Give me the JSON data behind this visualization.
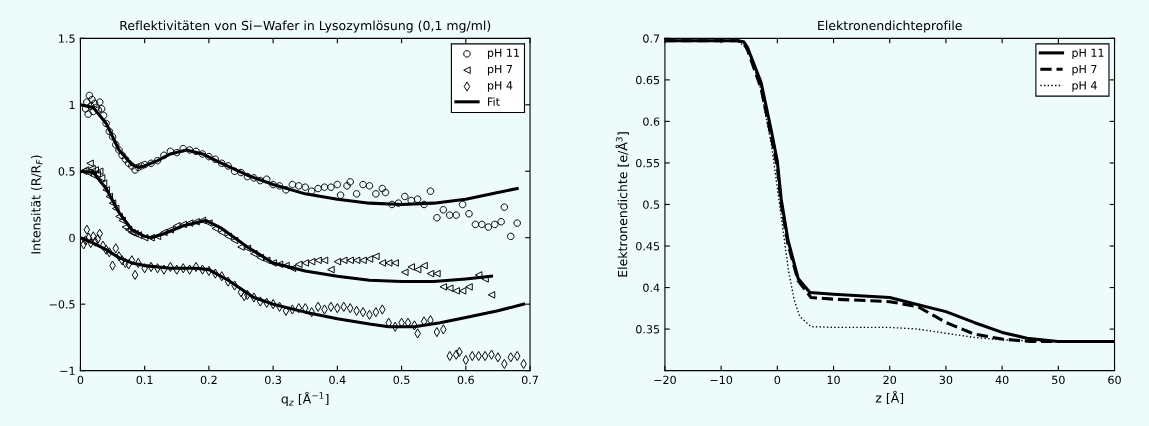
{
  "chart_data": [
    {
      "type": "scatter",
      "title": "Reflektivitäten von Si−Wafer in Lysozymlösung (0,1 mg/ml)",
      "xlabel": "q$_{z}$ [Å$^{−1}$]",
      "ylabel": "Intensität (R/R$_{F}$)",
      "xlim": [
        0,
        0.7
      ],
      "ylim": [
        -1,
        1.5
      ],
      "xticks": [
        0,
        0.1,
        0.2,
        0.3,
        0.4,
        0.5,
        0.6,
        0.7
      ],
      "yticks": [
        {
          "value": -1,
          "label": "−1"
        },
        {
          "value": -0.5,
          "label": "−0.5"
        },
        0,
        0.5,
        1,
        1.5
      ],
      "grid": false,
      "legend": "top right",
      "series": [
        {
          "name": "pH 11",
          "color": "#000000",
          "marker": "circle",
          "x": [
            0.008,
            0.01,
            0.012,
            0.014,
            0.016,
            0.018,
            0.02,
            0.022,
            0.025,
            0.028,
            0.03,
            0.033,
            0.036,
            0.04,
            0.045,
            0.05,
            0.055,
            0.06,
            0.065,
            0.07,
            0.075,
            0.08,
            0.085,
            0.09,
            0.095,
            0.1,
            0.11,
            0.12,
            0.13,
            0.14,
            0.15,
            0.16,
            0.17,
            0.18,
            0.19,
            0.2,
            0.21,
            0.22,
            0.23,
            0.24,
            0.25,
            0.26,
            0.27,
            0.28,
            0.29,
            0.3,
            0.31,
            0.32,
            0.33,
            0.34,
            0.35,
            0.36,
            0.37,
            0.38,
            0.39,
            0.4,
            0.405,
            0.415,
            0.42,
            0.43,
            0.44,
            0.45,
            0.46,
            0.47,
            0.475,
            0.485,
            0.495,
            0.505,
            0.515,
            0.525,
            0.535,
            0.545,
            0.555,
            0.565,
            0.575,
            0.585,
            0.595,
            0.605,
            0.615,
            0.625,
            0.635,
            0.645,
            0.655,
            0.66,
            0.67,
            0.68
          ],
          "values": [
            0.97,
            1.02,
            0.93,
            1.07,
            0.99,
            1.04,
            0.95,
            1.01,
            0.98,
            0.96,
            1.02,
            0.97,
            0.92,
            0.86,
            0.8,
            0.76,
            0.7,
            0.66,
            0.62,
            0.59,
            0.56,
            0.54,
            0.51,
            0.53,
            0.54,
            0.55,
            0.56,
            0.58,
            0.62,
            0.65,
            0.64,
            0.67,
            0.66,
            0.65,
            0.63,
            0.61,
            0.59,
            0.56,
            0.54,
            0.5,
            0.49,
            0.46,
            0.45,
            0.43,
            0.44,
            0.4,
            0.39,
            0.36,
            0.4,
            0.39,
            0.38,
            0.35,
            0.37,
            0.38,
            0.38,
            0.4,
            0.32,
            0.39,
            0.42,
            0.33,
            0.4,
            0.39,
            0.33,
            0.37,
            0.34,
            0.25,
            0.26,
            0.31,
            0.28,
            0.29,
            0.25,
            0.35,
            0.15,
            0.21,
            0.17,
            0.17,
            0.25,
            0.18,
            0.1,
            0.1,
            0.08,
            0.1,
            0.12,
            0.23,
            0.01,
            0.11
          ]
        },
        {
          "name": "pH 7",
          "color": "#000000",
          "marker": "triangle",
          "x": [
            0.005,
            0.008,
            0.012,
            0.015,
            0.018,
            0.02,
            0.023,
            0.026,
            0.03,
            0.033,
            0.036,
            0.04,
            0.045,
            0.05,
            0.055,
            0.06,
            0.065,
            0.07,
            0.075,
            0.08,
            0.085,
            0.09,
            0.1,
            0.11,
            0.12,
            0.13,
            0.14,
            0.15,
            0.16,
            0.17,
            0.18,
            0.19,
            0.2,
            0.21,
            0.22,
            0.23,
            0.24,
            0.25,
            0.26,
            0.27,
            0.28,
            0.29,
            0.3,
            0.31,
            0.32,
            0.33,
            0.34,
            0.35,
            0.36,
            0.37,
            0.38,
            0.39,
            0.4,
            0.41,
            0.42,
            0.43,
            0.44,
            0.45,
            0.46,
            0.47,
            0.48,
            0.49,
            0.505,
            0.515,
            0.525,
            0.535,
            0.545,
            0.555,
            0.565,
            0.575,
            0.585,
            0.595,
            0.605,
            0.62,
            0.63,
            0.64
          ],
          "values": [
            0.5,
            0.51,
            0.49,
            0.56,
            0.52,
            0.47,
            0.51,
            0.48,
            0.5,
            0.45,
            0.41,
            0.36,
            0.31,
            0.26,
            0.22,
            0.16,
            0.13,
            0.08,
            0.06,
            0.04,
            0.03,
            0.02,
            0.0,
            0.0,
            0.01,
            0.04,
            0.06,
            0.09,
            0.1,
            0.11,
            0.12,
            0.13,
            0.11,
            0.07,
            0.04,
            0.01,
            -0.02,
            -0.07,
            -0.08,
            -0.12,
            -0.15,
            -0.17,
            -0.19,
            -0.2,
            -0.21,
            -0.23,
            -0.2,
            -0.19,
            -0.18,
            -0.17,
            -0.17,
            -0.24,
            -0.18,
            -0.17,
            -0.17,
            -0.17,
            -0.17,
            -0.16,
            -0.14,
            -0.19,
            -0.19,
            -0.19,
            -0.26,
            -0.22,
            -0.24,
            -0.21,
            -0.27,
            -0.27,
            -0.37,
            -0.38,
            -0.4,
            -0.4,
            -0.37,
            -0.28,
            -0.31,
            -0.43
          ]
        },
        {
          "name": "pH 4",
          "color": "#000000",
          "marker": "diamond",
          "x": [
            0.005,
            0.008,
            0.01,
            0.013,
            0.016,
            0.02,
            0.023,
            0.027,
            0.03,
            0.035,
            0.04,
            0.045,
            0.05,
            0.055,
            0.06,
            0.065,
            0.07,
            0.075,
            0.08,
            0.085,
            0.09,
            0.1,
            0.11,
            0.12,
            0.13,
            0.14,
            0.15,
            0.16,
            0.17,
            0.18,
            0.19,
            0.2,
            0.21,
            0.22,
            0.23,
            0.24,
            0.25,
            0.255,
            0.26,
            0.27,
            0.28,
            0.29,
            0.3,
            0.31,
            0.32,
            0.33,
            0.34,
            0.35,
            0.36,
            0.37,
            0.38,
            0.39,
            0.4,
            0.41,
            0.42,
            0.43,
            0.44,
            0.45,
            0.46,
            0.47,
            0.48,
            0.49,
            0.5,
            0.51,
            0.52,
            0.525,
            0.535,
            0.545,
            0.555,
            0.565,
            0.575,
            0.585,
            0.59,
            0.6,
            0.61,
            0.62,
            0.63,
            0.64,
            0.65,
            0.66,
            0.67,
            0.68,
            0.69
          ],
          "values": [
            -0.05,
            -0.02,
            0.06,
            0.0,
            -0.04,
            0.01,
            -0.03,
            -0.01,
            0.03,
            -0.06,
            -0.09,
            -0.11,
            -0.21,
            -0.08,
            -0.14,
            -0.17,
            -0.19,
            -0.2,
            -0.17,
            -0.28,
            -0.19,
            -0.23,
            -0.22,
            -0.23,
            -0.24,
            -0.22,
            -0.24,
            -0.23,
            -0.24,
            -0.22,
            -0.24,
            -0.25,
            -0.27,
            -0.29,
            -0.33,
            -0.36,
            -0.41,
            -0.44,
            -0.43,
            -0.45,
            -0.48,
            -0.49,
            -0.5,
            -0.52,
            -0.55,
            -0.54,
            -0.53,
            -0.53,
            -0.56,
            -0.52,
            -0.54,
            -0.52,
            -0.53,
            -0.52,
            -0.53,
            -0.55,
            -0.56,
            -0.58,
            -0.56,
            -0.54,
            -0.64,
            -0.67,
            -0.64,
            -0.64,
            -0.66,
            -0.72,
            -0.63,
            -0.62,
            -0.71,
            -0.69,
            -0.89,
            -0.88,
            -0.86,
            -0.92,
            -0.89,
            -0.89,
            -0.89,
            -0.88,
            -0.9,
            -0.95,
            -0.9,
            -0.89,
            -0.95
          ]
        },
        {
          "name": "Fit",
          "type": "line",
          "color": "#000000",
          "line_style": "solid",
          "x": [
            0,
            0.02,
            0.04,
            0.06,
            0.08,
            0.09,
            0.1,
            0.12,
            0.14,
            0.165,
            0.19,
            0.22,
            0.26,
            0.3,
            0.35,
            0.4,
            0.45,
            0.5,
            0.55,
            0.6,
            0.65,
            0.68
          ],
          "values": [
            1.0,
            0.98,
            0.86,
            0.66,
            0.55,
            0.53,
            0.54,
            0.58,
            0.63,
            0.66,
            0.63,
            0.56,
            0.47,
            0.4,
            0.33,
            0.29,
            0.26,
            0.25,
            0.26,
            0.29,
            0.34,
            0.37
          ]
        },
        {
          "type": "line",
          "color": "#000000",
          "line_style": "solid",
          "x": [
            0,
            0.02,
            0.04,
            0.06,
            0.08,
            0.1,
            0.11,
            0.13,
            0.16,
            0.195,
            0.22,
            0.26,
            0.3,
            0.35,
            0.4,
            0.45,
            0.5,
            0.55,
            0.6,
            0.64
          ],
          "values": [
            0.5,
            0.49,
            0.37,
            0.19,
            0.06,
            0.01,
            0.0,
            0.03,
            0.09,
            0.13,
            0.07,
            -0.07,
            -0.19,
            -0.25,
            -0.29,
            -0.32,
            -0.33,
            -0.33,
            -0.31,
            -0.29
          ]
        },
        {
          "type": "line",
          "color": "#000000",
          "line_style": "solid",
          "x": [
            0,
            0.02,
            0.04,
            0.06,
            0.08,
            0.1,
            0.14,
            0.18,
            0.2,
            0.23,
            0.27,
            0.3,
            0.35,
            0.4,
            0.45,
            0.48,
            0.52,
            0.56,
            0.6,
            0.65,
            0.69
          ],
          "values": [
            0.0,
            -0.04,
            -0.09,
            -0.15,
            -0.19,
            -0.21,
            -0.23,
            -0.23,
            -0.24,
            -0.32,
            -0.45,
            -0.5,
            -0.56,
            -0.61,
            -0.65,
            -0.67,
            -0.67,
            -0.64,
            -0.6,
            -0.55,
            -0.5
          ]
        }
      ]
    },
    {
      "type": "line",
      "title": "Elektronendichteprofile",
      "xlabel": "z [Å]",
      "ylabel": "Elektronendichte [e/Å$^{3}$]",
      "xlim": [
        -20,
        60
      ],
      "ylim": [
        0.3,
        0.7
      ],
      "xticks": [
        {
          "value": -20,
          "label": "−20"
        },
        {
          "value": -10,
          "label": "−10"
        },
        0,
        10,
        20,
        30,
        40,
        50,
        60
      ],
      "yticks": [
        0.35,
        0.4,
        0.45,
        0.5,
        0.55,
        0.6,
        0.65,
        0.7
      ],
      "grid": false,
      "legend": "top right",
      "series": [
        {
          "name": "pH 11",
          "color": "#000000",
          "line_style": "solid",
          "x": [
            -20,
            -10,
            -7,
            -6,
            -5.3,
            -2.9,
            -1.1,
            0,
            0.7,
            1.9,
            3.7,
            5.8,
            10,
            20,
            24.7,
            30,
            35,
            40,
            44.4,
            50,
            60
          ],
          "values": [
            0.697,
            0.697,
            0.697,
            0.696,
            0.689,
            0.647,
            0.59,
            0.552,
            0.506,
            0.457,
            0.411,
            0.394,
            0.392,
            0.388,
            0.38,
            0.371,
            0.358,
            0.346,
            0.339,
            0.335,
            0.335
          ]
        },
        {
          "name": "pH 7",
          "color": "#000000",
          "line_style": "dashed",
          "x": [
            -20,
            -10,
            -7,
            -6,
            -5.3,
            -2.9,
            -1.1,
            0,
            0.7,
            1.9,
            3.7,
            6,
            10,
            20,
            25,
            30,
            35,
            40,
            45,
            50,
            60
          ],
          "values": [
            0.697,
            0.697,
            0.697,
            0.695,
            0.686,
            0.64,
            0.582,
            0.545,
            0.5,
            0.452,
            0.408,
            0.388,
            0.386,
            0.383,
            0.377,
            0.358,
            0.344,
            0.338,
            0.335,
            0.335,
            0.335
          ]
        },
        {
          "name": "pH 4",
          "color": "#000000",
          "line_style": "dotted",
          "x": [
            -20,
            -10,
            -7,
            -5,
            -3,
            -1,
            0,
            1,
            2,
            3,
            4,
            6,
            10,
            20,
            25,
            30,
            35,
            40,
            50,
            60
          ],
          "values": [
            0.697,
            0.697,
            0.697,
            0.685,
            0.64,
            0.57,
            0.52,
            0.47,
            0.42,
            0.385,
            0.365,
            0.353,
            0.352,
            0.352,
            0.35,
            0.345,
            0.34,
            0.337,
            0.335,
            0.335
          ]
        }
      ]
    }
  ]
}
